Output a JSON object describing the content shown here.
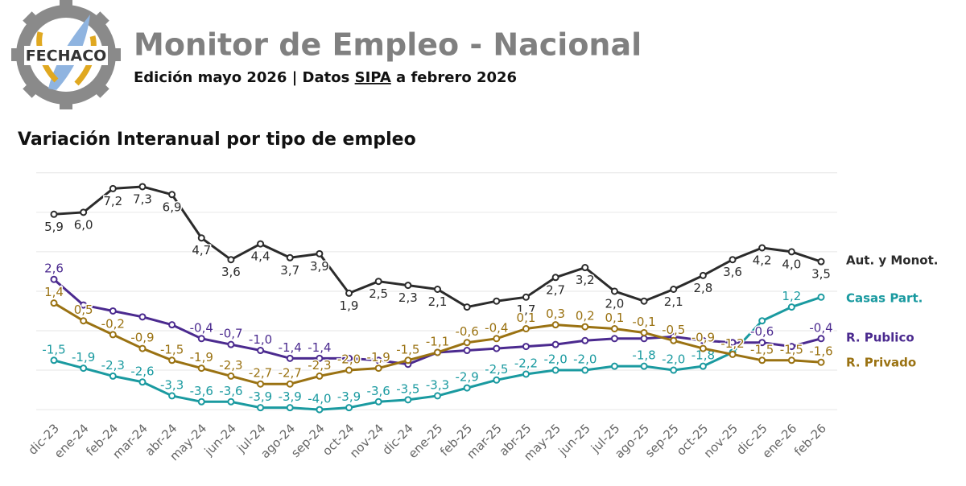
{
  "logo": {
    "text": "FECHACO"
  },
  "header": {
    "title": "Monitor de Empleo - Nacional",
    "subtitle_start": "Edición mayo 2026 | Datos",
    "subtitle_link": "SIPA",
    "subtitle_end": "a febrero 2026"
  },
  "chart_data": {
    "type": "line",
    "title": "Variación Interanual por tipo de empleo",
    "categories": [
      "dic-23",
      "ene-24",
      "feb-24",
      "mar-24",
      "abr-24",
      "may-24",
      "jun-24",
      "jul-24",
      "ago-24",
      "sep-24",
      "oct-24",
      "nov-24",
      "dic-24",
      "ene-25",
      "feb-25",
      "mar-25",
      "abr-25",
      "may-25",
      "jun-25",
      "jul-25",
      "ago-25",
      "sep-25",
      "oct-25",
      "nov-25",
      "dic-25",
      "ene-26",
      "feb-26"
    ],
    "ylim": [
      -4.2,
      8.4
    ],
    "yticks": [
      -4,
      -2,
      0,
      2,
      4,
      6,
      8
    ],
    "grid": true,
    "series": [
      {
        "name": "Aut. y Monot.",
        "color": "#2b2b2b",
        "label_pos": "below",
        "values": [
          5.9,
          6.0,
          7.2,
          7.3,
          6.9,
          4.7,
          3.6,
          4.4,
          3.7,
          3.9,
          1.9,
          2.5,
          2.3,
          2.1,
          1.2,
          1.5,
          1.7,
          2.7,
          3.2,
          2.0,
          1.5,
          2.1,
          2.8,
          3.6,
          4.2,
          4.0,
          3.5
        ],
        "value_labels": [
          "5,9",
          "6,0",
          "7,2",
          "7,3",
          "6,9",
          "4,7",
          "3,6",
          "4,4",
          "3,7",
          "3,9",
          "1,9",
          "2,5",
          "2,3",
          "2,1",
          null,
          null,
          "1,7",
          "2,7",
          "3,2",
          "2,0",
          null,
          "2,1",
          "2,8",
          "3,6",
          "4,2",
          "4,0",
          "3,5"
        ]
      },
      {
        "name": "Casas Part.",
        "color": "#1a9aa0",
        "label_pos": "above",
        "values": [
          -1.5,
          -1.9,
          -2.3,
          -2.6,
          -3.3,
          -3.6,
          -3.6,
          -3.9,
          -3.9,
          -4.0,
          -3.9,
          -3.6,
          -3.5,
          -3.3,
          -2.9,
          -2.5,
          -2.2,
          -2.0,
          -2.0,
          -1.8,
          -1.8,
          -2.0,
          -1.8,
          -1.1,
          0.5,
          1.2,
          1.7
        ],
        "value_labels": [
          "-1,5",
          "-1,9",
          "-2,3",
          "-2,6",
          "-3,3",
          "-3,6",
          "-3,6",
          "-3,9",
          "-3,9",
          "-4,0",
          "-3,9",
          "-3,6",
          "-3,5",
          "-3,3",
          "-2,9",
          "-2,5",
          "-2,2",
          "-2,0",
          "-2,0",
          null,
          "-1,8",
          "-2,0",
          "-1,8",
          null,
          null,
          "1,2",
          null
        ]
      },
      {
        "name": "R. Publico",
        "color": "#4b2a8f",
        "label_pos": "above",
        "values": [
          2.6,
          1.3,
          1.0,
          0.7,
          0.3,
          -0.4,
          -0.7,
          -1.0,
          -1.4,
          -1.4,
          -1.4,
          -1.5,
          -1.7,
          -1.1,
          -1.0,
          -0.9,
          -0.8,
          -0.7,
          -0.5,
          -0.4,
          -0.4,
          -0.3,
          -0.5,
          -0.6,
          -0.6,
          -0.8,
          -0.4
        ],
        "value_labels": [
          "2,6",
          null,
          null,
          null,
          null,
          "-0,4",
          "-0,7",
          "-1,0",
          "-1,4",
          "-1,4",
          null,
          null,
          null,
          null,
          null,
          null,
          null,
          null,
          null,
          null,
          null,
          null,
          null,
          null,
          "-0,6",
          null,
          "-0,4"
        ]
      },
      {
        "name": "R. Privado",
        "color": "#9a7212",
        "label_pos": "above",
        "values": [
          1.4,
          0.5,
          -0.2,
          -0.9,
          -1.5,
          -1.9,
          -2.3,
          -2.7,
          -2.7,
          -2.3,
          -2.0,
          -1.9,
          -1.5,
          -1.1,
          -0.6,
          -0.4,
          0.1,
          0.3,
          0.2,
          0.1,
          -0.1,
          -0.5,
          -0.9,
          -1.2,
          -1.5,
          -1.5,
          -1.6
        ],
        "value_labels": [
          "1,4",
          "0,5",
          "-0,2",
          "-0,9",
          "-1,5",
          "-1,9",
          "-2,3",
          "-2,7",
          "-2,7",
          "-2,3",
          "-2,0",
          "-1,9",
          "-1,5",
          "-1,1",
          "-0,6",
          "-0,4",
          "0,1",
          "0,3",
          "0,2",
          "0,1",
          "-0,1",
          "-0,5",
          "-0,9",
          "-1,2",
          "-1,5",
          "-1,5",
          "-1,6"
        ]
      }
    ]
  }
}
